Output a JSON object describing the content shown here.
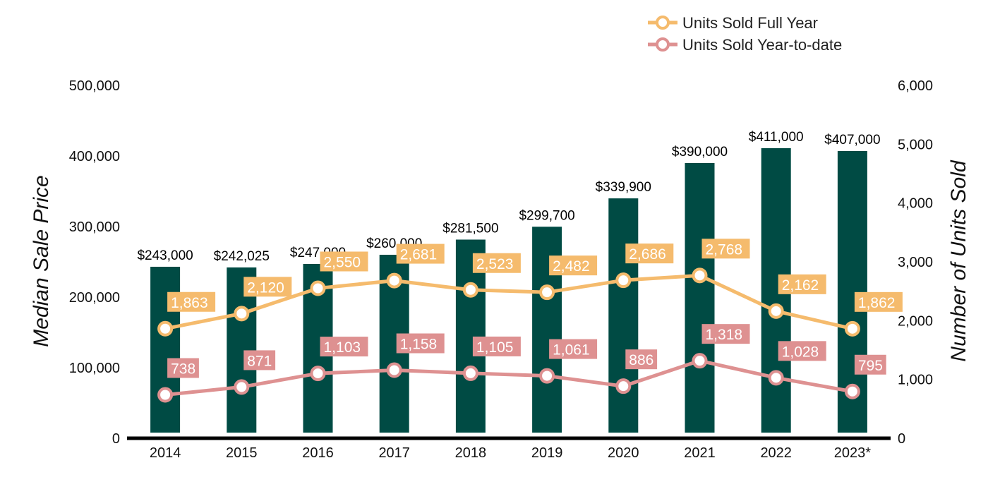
{
  "chart_data": {
    "type": "bar",
    "categories": [
      "2014",
      "2015",
      "2016",
      "2017",
      "2018",
      "2019",
      "2020",
      "2021",
      "2022",
      "2023*"
    ],
    "bar_series": {
      "values": [
        243000,
        242025,
        247000,
        260000,
        281500,
        299700,
        339900,
        390000,
        411000,
        407000
      ],
      "labels": [
        "$243,000",
        "$242,025",
        "$247,000",
        "$260,000",
        "$281,500",
        "$299,700",
        "$339,900",
        "$390,000",
        "$411,000",
        "$407,000"
      ],
      "color": "#004b44"
    },
    "line_series": [
      {
        "name": "Units Sold Full Year",
        "values": [
          1863,
          2120,
          2550,
          2681,
          2523,
          2482,
          2686,
          2768,
          2162,
          1862
        ],
        "labels": [
          "1,863",
          "2,120",
          "2,550",
          "2,681",
          "2,523",
          "2,482",
          "2,686",
          "2,768",
          "2,162",
          "1,862"
        ],
        "color": "#f5bb6d"
      },
      {
        "name": "Units Sold Year-to-date",
        "values": [
          738,
          871,
          1103,
          1158,
          1105,
          1061,
          886,
          1318,
          1028,
          795
        ],
        "labels": [
          "738",
          "871",
          "1,103",
          "1,158",
          "1,105",
          "1,061",
          "886",
          "1,318",
          "1,028",
          "795"
        ],
        "color": "#de9191"
      }
    ],
    "ylabel": "Median Sale Price",
    "y2label": "Number of Units Sold",
    "ylim": [
      0,
      500000
    ],
    "y2lim": [
      0,
      6000
    ],
    "yticks": [
      "0",
      "100,000",
      "200,000",
      "300,000",
      "400,000",
      "500,000"
    ],
    "y2ticks": [
      "0",
      "1,000",
      "2,000",
      "3,000",
      "4,000",
      "5,000",
      "6,000"
    ],
    "legend_position": "top-right",
    "grid": false
  }
}
